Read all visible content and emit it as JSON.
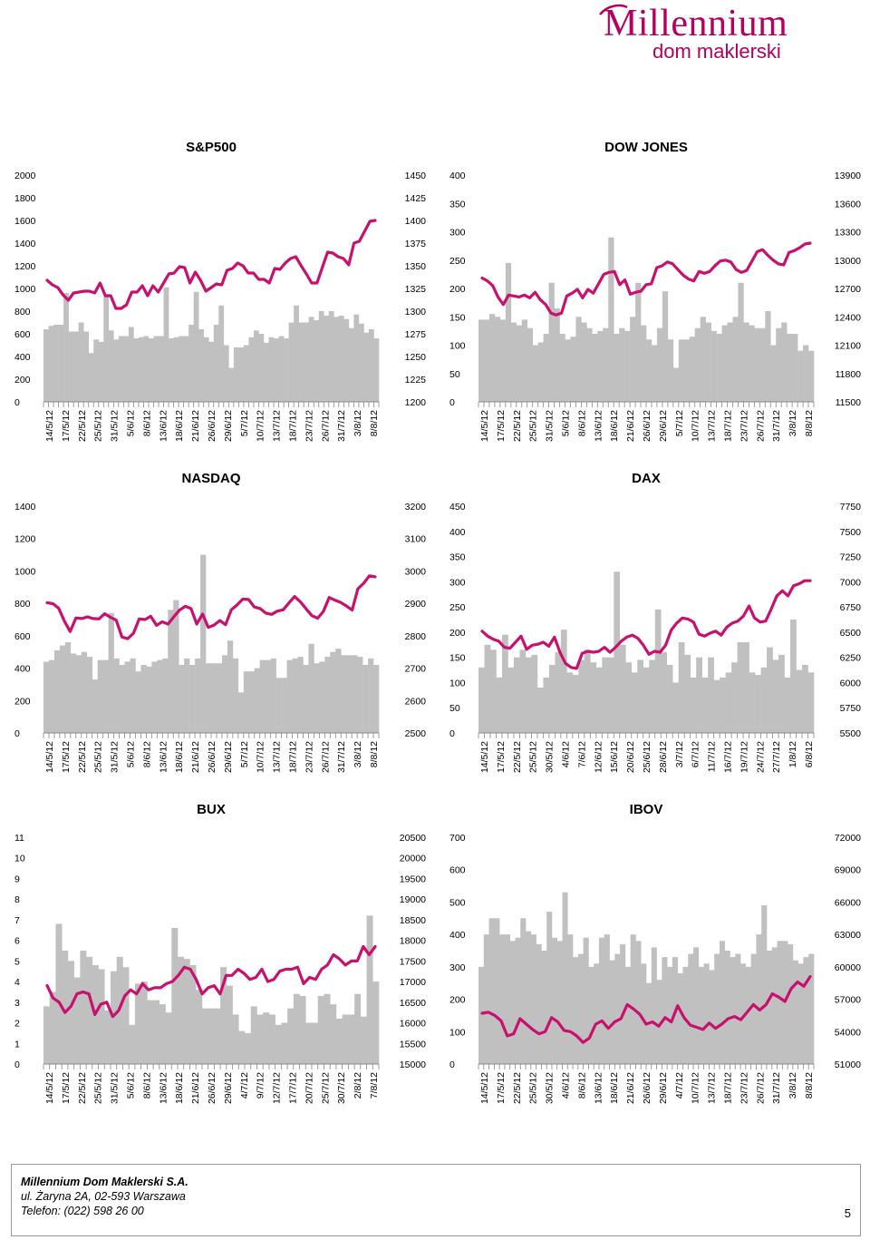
{
  "brand": {
    "main": "Millennium",
    "sub": "dom maklerski",
    "color": "#b5005f"
  },
  "footer": {
    "company": "Millennium Dom Maklerski S.A.",
    "address": "ul. Żaryna 2A, 02-593 Warszawa",
    "phone": "Telefon: (022) 598 26 00",
    "page": "5"
  },
  "colors": {
    "line": "#c8106e",
    "bars": "#c0c0c0"
  },
  "chart_data": [
    {
      "type": "bar-line",
      "title": "S&P500",
      "left_axis": {
        "ticks": [
          "0",
          "200",
          "400",
          "600",
          "800",
          "1000",
          "1200",
          "1400",
          "1600",
          "1800",
          "2000"
        ],
        "range": [
          0,
          2000
        ]
      },
      "right_axis": {
        "ticks": [
          "1200",
          "1225",
          "1250",
          "1275",
          "1300",
          "1325",
          "1350",
          "1375",
          "1400",
          "1425",
          "1450"
        ],
        "range": [
          1200,
          1450
        ]
      },
      "date_labels": [
        "14/5/12",
        "17/5/12",
        "22/5/12",
        "25/5/12",
        "31/5/12",
        "5/6/12",
        "8/6/12",
        "13/6/12",
        "18/6/12",
        "21/6/12",
        "26/6/12",
        "29/6/12",
        "5/7/12",
        "10/7/12",
        "13/7/12",
        "18/7/12",
        "23/7/12",
        "26/7/12",
        "31/7/12",
        "3/8/12",
        "8/8/12"
      ],
      "bars": [
        640,
        670,
        680,
        680,
        960,
        620,
        620,
        700,
        620,
        430,
        550,
        530,
        930,
        630,
        550,
        580,
        580,
        660,
        560,
        570,
        580,
        560,
        580,
        580,
        1010,
        560,
        570,
        580,
        580,
        680,
        970,
        640,
        570,
        530,
        680,
        850,
        500,
        300,
        480,
        480,
        500,
        570,
        630,
        600,
        520,
        570,
        560,
        580,
        560,
        700,
        850,
        700,
        700,
        750,
        720,
        800,
        760,
        800,
        750,
        760,
        730,
        650,
        770,
        690,
        610,
        640,
        560
      ],
      "line": [
        1334,
        1329,
        1326,
        1318,
        1312,
        1320,
        1321,
        1322,
        1322,
        1320,
        1331,
        1317,
        1317,
        1303,
        1303,
        1307,
        1321,
        1321,
        1328,
        1317,
        1328,
        1321,
        1331,
        1341,
        1342,
        1349,
        1348,
        1331,
        1343,
        1334,
        1322,
        1326,
        1330,
        1329,
        1345,
        1347,
        1353,
        1350,
        1342,
        1342,
        1335,
        1335,
        1331,
        1347,
        1346,
        1353,
        1358,
        1360,
        1350,
        1341,
        1331,
        1331,
        1348,
        1365,
        1364,
        1360,
        1358,
        1351,
        1375,
        1377,
        1388,
        1399,
        1400
      ],
      "line_range": [
        1200,
        1450
      ]
    },
    {
      "type": "bar-line",
      "title": "DOW JONES",
      "left_axis": {
        "ticks": [
          "0",
          "50",
          "100",
          "150",
          "200",
          "250",
          "300",
          "350",
          "400"
        ],
        "range": [
          0,
          400
        ]
      },
      "right_axis": {
        "ticks": [
          "11500",
          "11800",
          "12100",
          "12400",
          "12700",
          "13000",
          "13300",
          "13600",
          "13900"
        ],
        "range": [
          11500,
          13900
        ]
      },
      "date_labels": [
        "14/5/12",
        "17/5/12",
        "22/5/12",
        "25/5/12",
        "31/5/12",
        "5/6/12",
        "8/6/12",
        "13/6/12",
        "18/6/12",
        "21/6/12",
        "26/6/12",
        "29/6/12",
        "5/7/12",
        "10/7/12",
        "13/7/12",
        "18/7/12",
        "23/7/12",
        "26/7/12",
        "31/7/12",
        "3/8/12",
        "8/8/12"
      ],
      "bars": [
        145,
        145,
        155,
        150,
        145,
        245,
        140,
        135,
        145,
        130,
        100,
        105,
        120,
        210,
        165,
        120,
        110,
        115,
        150,
        140,
        130,
        120,
        125,
        130,
        290,
        120,
        130,
        125,
        150,
        210,
        135,
        110,
        100,
        130,
        195,
        110,
        60,
        110,
        110,
        115,
        130,
        150,
        140,
        125,
        120,
        135,
        140,
        150,
        210,
        140,
        135,
        130,
        130,
        160,
        100,
        130,
        140,
        120,
        120,
        90,
        100,
        90
      ],
      "line": [
        12810,
        12780,
        12730,
        12610,
        12530,
        12630,
        12620,
        12610,
        12630,
        12600,
        12660,
        12580,
        12530,
        12440,
        12420,
        12440,
        12620,
        12650,
        12690,
        12600,
        12690,
        12650,
        12750,
        12850,
        12870,
        12880,
        12740,
        12790,
        12640,
        12660,
        12670,
        12740,
        12750,
        12920,
        12940,
        12980,
        12960,
        12900,
        12840,
        12800,
        12780,
        12880,
        12860,
        12880,
        12940,
        12990,
        13000,
        12980,
        12900,
        12870,
        12890,
        12990,
        13090,
        13110,
        13050,
        13000,
        12960,
        12950,
        13080,
        13100,
        13130,
        13170,
        13180
      ],
      "line_range": [
        11500,
        13900
      ]
    },
    {
      "type": "bar-line",
      "title": "NASDAQ",
      "left_axis": {
        "ticks": [
          "0",
          "200",
          "400",
          "600",
          "800",
          "1000",
          "1200",
          "1400"
        ],
        "range": [
          0,
          1400
        ]
      },
      "right_axis": {
        "ticks": [
          "2500",
          "2600",
          "2700",
          "2800",
          "2900",
          "3000",
          "3100",
          "3200"
        ],
        "range": [
          2500,
          3200
        ]
      },
      "date_labels": [
        "14/5/12",
        "17/5/12",
        "22/5/12",
        "25/5/12",
        "31/5/12",
        "5/6/12",
        "8/6/12",
        "13/6/12",
        "18/6/12",
        "21/6/12",
        "26/6/12",
        "29/6/12",
        "5/7/12",
        "10/7/12",
        "13/7/12",
        "18/7/12",
        "23/7/12",
        "26/7/12",
        "31/7/12",
        "3/8/12",
        "8/8/12"
      ],
      "bars": [
        440,
        450,
        510,
        540,
        560,
        490,
        480,
        500,
        470,
        330,
        450,
        450,
        740,
        460,
        420,
        440,
        460,
        380,
        420,
        410,
        440,
        450,
        460,
        760,
        820,
        420,
        460,
        420,
        460,
        1100,
        430,
        430,
        430,
        480,
        570,
        460,
        250,
        380,
        380,
        400,
        450,
        450,
        460,
        340,
        340,
        450,
        460,
        470,
        420,
        550,
        430,
        440,
        470,
        500,
        520,
        480,
        480,
        480,
        470,
        420,
        460,
        420
      ],
      "line": [
        2902,
        2899,
        2885,
        2845,
        2813,
        2855,
        2853,
        2858,
        2853,
        2852,
        2868,
        2857,
        2848,
        2796,
        2791,
        2808,
        2852,
        2850,
        2860,
        2832,
        2843,
        2836,
        2858,
        2879,
        2891,
        2884,
        2836,
        2867,
        2826,
        2833,
        2847,
        2834,
        2880,
        2895,
        2913,
        2912,
        2889,
        2884,
        2870,
        2866,
        2876,
        2880,
        2901,
        2921,
        2905,
        2883,
        2862,
        2854,
        2875,
        2918,
        2910,
        2903,
        2892,
        2879,
        2945,
        2962,
        2985,
        2982
      ],
      "line_range": [
        2500,
        3200
      ]
    },
    {
      "type": "bar-line",
      "title": "DAX",
      "left_axis": {
        "ticks": [
          "0",
          "50",
          "100",
          "150",
          "200",
          "250",
          "300",
          "350",
          "400",
          "450"
        ],
        "range": [
          0,
          450
        ]
      },
      "right_axis": {
        "ticks": [
          "5500",
          "5750",
          "6000",
          "6250",
          "6500",
          "6750",
          "7000",
          "7250",
          "7500",
          "7750"
        ],
        "range": [
          5500,
          7750
        ]
      },
      "date_labels": [
        "14/5/12",
        "17/5/12",
        "22/5/12",
        "25/5/12",
        "30/5/12",
        "4/6/12",
        "7/6/12",
        "12/6/12",
        "15/6/12",
        "20/6/12",
        "25/6/12",
        "28/6/12",
        "3/7/12",
        "6/7/12",
        "11/7/12",
        "16/7/12",
        "19/7/12",
        "24/7/12",
        "27/7/12",
        "1/8/12",
        "6/8/12"
      ],
      "bars": [
        130,
        175,
        165,
        110,
        195,
        130,
        150,
        165,
        150,
        155,
        90,
        110,
        135,
        160,
        205,
        120,
        115,
        145,
        165,
        140,
        130,
        150,
        150,
        320,
        175,
        140,
        120,
        145,
        130,
        145,
        245,
        160,
        135,
        100,
        180,
        155,
        110,
        150,
        110,
        150,
        105,
        110,
        120,
        140,
        180,
        180,
        120,
        115,
        130,
        170,
        145,
        155,
        110,
        225,
        125,
        135,
        120
      ],
      "line": [
        6510,
        6460,
        6430,
        6410,
        6350,
        6340,
        6400,
        6460,
        6330,
        6370,
        6380,
        6400,
        6360,
        6450,
        6300,
        6190,
        6150,
        6140,
        6290,
        6310,
        6300,
        6310,
        6350,
        6300,
        6350,
        6410,
        6450,
        6470,
        6440,
        6370,
        6280,
        6310,
        6300,
        6370,
        6520,
        6590,
        6640,
        6630,
        6600,
        6480,
        6460,
        6490,
        6510,
        6470,
        6550,
        6590,
        6610,
        6660,
        6760,
        6640,
        6600,
        6610,
        6730,
        6860,
        6910,
        6860,
        6960,
        6980,
        7010,
        7010
      ],
      "line_range": [
        5500,
        7750
      ]
    },
    {
      "type": "bar-line",
      "title": "BUX",
      "left_axis": {
        "ticks": [
          "0",
          "1",
          "2",
          "3",
          "4",
          "5",
          "6",
          "7",
          "8",
          "9",
          "10",
          "11"
        ],
        "range": [
          0,
          11
        ]
      },
      "right_axis": {
        "ticks": [
          "15000",
          "15500",
          "16000",
          "16500",
          "17000",
          "17500",
          "18000",
          "18500",
          "19000",
          "19500",
          "20000",
          "20500"
        ],
        "range": [
          15000,
          20500
        ]
      },
      "date_labels": [
        "14/5/12",
        "17/5/12",
        "22/5/12",
        "25/5/12",
        "31/5/12",
        "5/6/12",
        "8/6/12",
        "13/6/12",
        "18/6/12",
        "21/6/12",
        "26/6/12",
        "29/6/12",
        "4/7/12",
        "9/7/12",
        "12/7/12",
        "17/7/12",
        "20/7/12",
        "25/7/12",
        "30/7/12",
        "2/8/12",
        "7/8/12"
      ],
      "bars": [
        2.8,
        3.5,
        6.8,
        5.5,
        5.0,
        4.2,
        5.5,
        5.2,
        4.8,
        4.6,
        2.6,
        4.5,
        5.2,
        4.7,
        1.9,
        3.9,
        4.0,
        3.1,
        3.1,
        2.9,
        2.5,
        6.6,
        5.2,
        5.1,
        4.8,
        3.6,
        2.7,
        2.7,
        2.7,
        4.7,
        3.8,
        2.4,
        1.6,
        1.5,
        2.8,
        2.4,
        2.5,
        2.4,
        1.9,
        2.0,
        2.7,
        3.4,
        3.3,
        2.0,
        2.0,
        3.3,
        3.4,
        2.9,
        2.2,
        2.4,
        2.4,
        3.4,
        2.3,
        7.2,
        4.0
      ],
      "line": [
        16900,
        16600,
        16500,
        16250,
        16400,
        16700,
        16750,
        16700,
        16200,
        16450,
        16500,
        16150,
        16300,
        16650,
        16800,
        16700,
        16950,
        16800,
        16850,
        16850,
        16950,
        17000,
        17150,
        17350,
        17300,
        17050,
        16700,
        16850,
        16900,
        16700,
        17150,
        17150,
        17300,
        17200,
        17050,
        17100,
        17300,
        17000,
        17050,
        17250,
        17300,
        17300,
        17350,
        16950,
        17100,
        17050,
        17300,
        17400,
        17650,
        17550,
        17400,
        17500,
        17500,
        17850,
        17650,
        17850
      ],
      "line_range": [
        15000,
        20500
      ]
    },
    {
      "type": "bar-line",
      "title": "IBOV",
      "left_axis": {
        "ticks": [
          "0",
          "100",
          "200",
          "300",
          "400",
          "500",
          "600",
          "700"
        ],
        "range": [
          0,
          700
        ]
      },
      "right_axis": {
        "ticks": [
          "51000",
          "54000",
          "57000",
          "60000",
          "63000",
          "66000",
          "69000",
          "72000"
        ],
        "range": [
          51000,
          72000
        ]
      },
      "date_labels": [
        "14/5/12",
        "17/5/12",
        "22/5/12",
        "25/5/12",
        "30/5/12",
        "4/6/12",
        "8/6/12",
        "13/6/12",
        "18/6/12",
        "21/6/12",
        "26/6/12",
        "29/6/12",
        "4/7/12",
        "10/7/12",
        "13/7/12",
        "18/7/12",
        "23/7/12",
        "26/7/12",
        "31/7/12",
        "3/8/12",
        "8/8/12"
      ],
      "bars": [
        300,
        400,
        450,
        450,
        400,
        400,
        380,
        390,
        450,
        410,
        400,
        370,
        350,
        470,
        390,
        380,
        530,
        400,
        330,
        340,
        390,
        300,
        310,
        390,
        400,
        320,
        340,
        370,
        300,
        400,
        380,
        310,
        250,
        360,
        260,
        330,
        300,
        330,
        280,
        300,
        340,
        360,
        300,
        310,
        290,
        340,
        380,
        350,
        330,
        340,
        310,
        300,
        340,
        400,
        490,
        350,
        360,
        380,
        380,
        370,
        320,
        310,
        330,
        340
      ],
      "line": [
        55700,
        55800,
        55500,
        55000,
        53600,
        53800,
        55200,
        54700,
        54200,
        53800,
        54000,
        55300,
        54900,
        54100,
        54000,
        53600,
        53000,
        53400,
        54700,
        55000,
        54300,
        54900,
        55200,
        56500,
        56100,
        55600,
        54700,
        54900,
        54500,
        55300,
        54900,
        56400,
        55300,
        54600,
        54400,
        54200,
        54800,
        54300,
        54700,
        55200,
        55400,
        55100,
        55800,
        56500,
        56000,
        56500,
        57500,
        57200,
        56800,
        58000,
        58600,
        58200,
        59100
      ],
      "line_range": [
        51000,
        72000
      ]
    }
  ]
}
